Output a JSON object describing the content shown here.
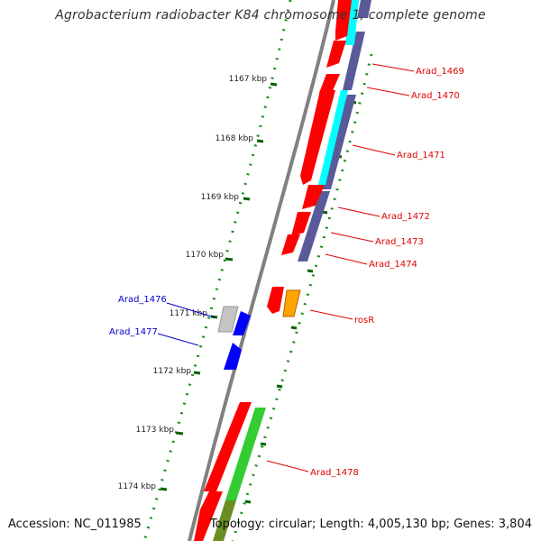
{
  "title": "Agrobacterium radiobacter K84 chromosome 1, complete genome",
  "accession": "Accession: NC_011985",
  "summary": "Topology: circular; Length: 4,005,130 bp; Genes: 3,804",
  "ticks": [
    {
      "label": "1167 kbp",
      "kbp": 1167
    },
    {
      "label": "1168 kbp",
      "kbp": 1168
    },
    {
      "label": "1169 kbp",
      "kbp": 1169
    },
    {
      "label": "1170 kbp",
      "kbp": 1170
    },
    {
      "label": "1171 kbp",
      "kbp": 1171
    },
    {
      "label": "1172 kbp",
      "kbp": 1172
    },
    {
      "label": "1173 kbp",
      "kbp": 1173
    },
    {
      "label": "1174 kbp",
      "kbp": 1174
    }
  ],
  "gene_labels": [
    {
      "name": "Arad_1469",
      "color": "#e00000"
    },
    {
      "name": "Arad_1470",
      "color": "#e00000"
    },
    {
      "name": "Arad_1471",
      "color": "#e00000"
    },
    {
      "name": "Arad_1472",
      "color": "#e00000"
    },
    {
      "name": "Arad_1473",
      "color": "#e00000"
    },
    {
      "name": "Arad_1474",
      "color": "#e00000"
    },
    {
      "name": "rosR",
      "color": "#e00000"
    },
    {
      "name": "Arad_1476",
      "color": "#0000cc"
    },
    {
      "name": "Arad_1477",
      "color": "#0000cc"
    },
    {
      "name": "Arad_1478",
      "color": "#e00000"
    }
  ],
  "colors": {
    "cds": "#ff0000",
    "rna": "#ffa500",
    "pseudo": "#bbbbbb",
    "reverse_strand": "#0000ff",
    "cog_cyan": "#00ffff",
    "cog_purple": "#5a5a9a",
    "cog_green": "#33cc33",
    "cog_olive": "#6b8e23",
    "backbone": "#808080",
    "tick": "#006400"
  }
}
